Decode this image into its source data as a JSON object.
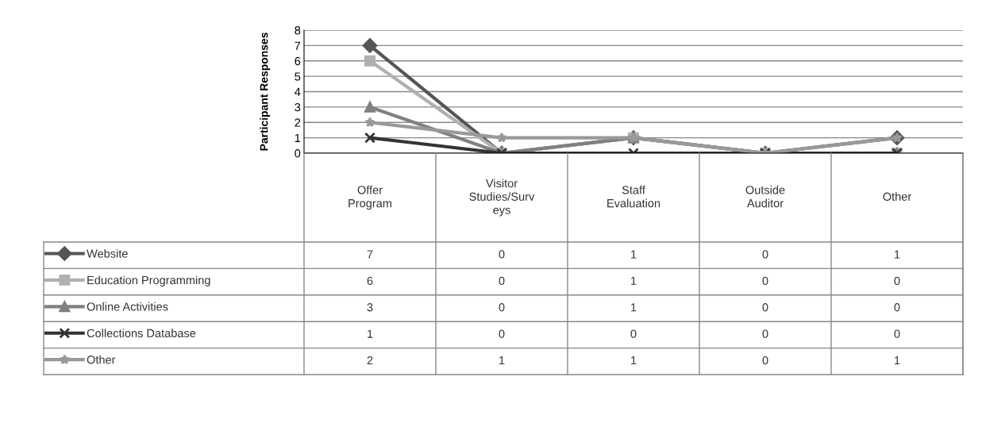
{
  "chart_data": {
    "type": "line",
    "ylabel": "Participant Responses",
    "categories": [
      "Offer\nProgram",
      "Visitor\nStudies/Surv\neys",
      "Staff\nEvaluation",
      "Outside\nAuditor",
      "Other"
    ],
    "series": [
      {
        "name": "Website",
        "color": "#555555",
        "marker": "diamond",
        "values": [
          7,
          0,
          1,
          0,
          1
        ]
      },
      {
        "name": "Education Programming",
        "color": "#b0b0b0",
        "marker": "square",
        "values": [
          6,
          0,
          1,
          0,
          0
        ]
      },
      {
        "name": "Online Activities",
        "color": "#808080",
        "marker": "triangle",
        "values": [
          3,
          0,
          1,
          0,
          0
        ]
      },
      {
        "name": "Collections Database",
        "color": "#333333",
        "marker": "cross",
        "values": [
          1,
          0,
          0,
          0,
          0
        ]
      },
      {
        "name": "Other",
        "color": "#999999",
        "marker": "star",
        "values": [
          2,
          1,
          1,
          0,
          1
        ]
      }
    ],
    "ylim": [
      0,
      8
    ],
    "yticks": [
      0,
      1,
      2,
      3,
      4,
      5,
      6,
      7,
      8
    ],
    "grid": "y",
    "legend": "bottom left",
    "data_labels": true
  }
}
